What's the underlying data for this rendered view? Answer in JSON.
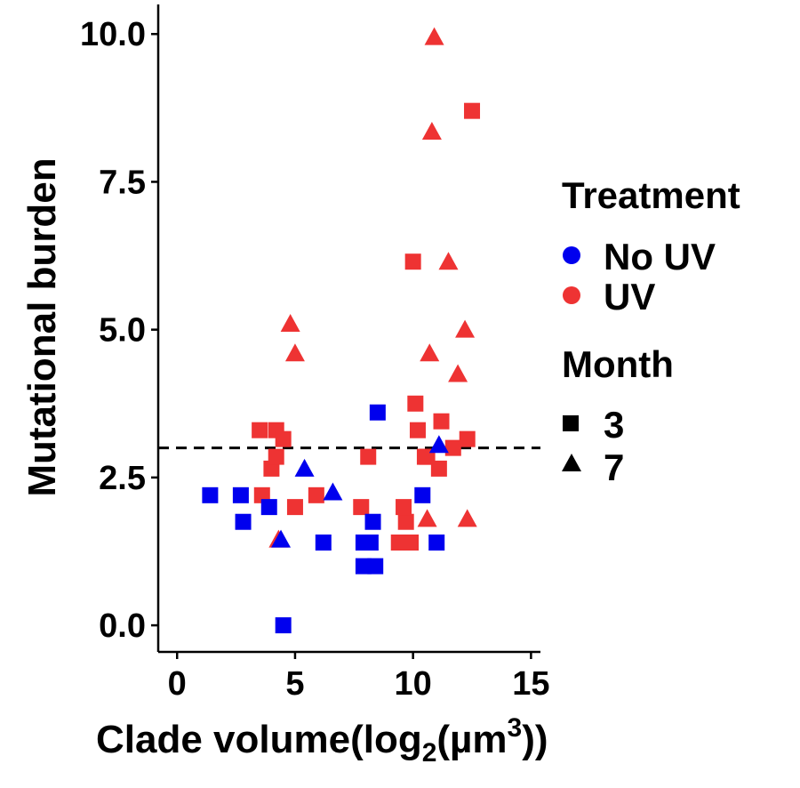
{
  "chart_data": {
    "type": "scatter",
    "xlabel": "Clade volume",
    "xlabel_parts": {
      "prefix": "Clade volume(log",
      "sub": "2",
      "mid": "(µm",
      "sup": "3",
      "suffix": "))"
    },
    "ylabel": "Mutational burden",
    "xlim": [
      -0.8,
      15.4
    ],
    "ylim": [
      -0.45,
      10.5
    ],
    "x_ticks": [
      0,
      5,
      10,
      15
    ],
    "x_tick_labels": [
      "0",
      "5",
      "10",
      "15"
    ],
    "y_ticks": [
      0,
      2.5,
      5,
      7.5,
      10
    ],
    "y_tick_labels": [
      "0.0",
      "2.5",
      "5.0",
      "7.5",
      "10.0"
    ],
    "reference_line": {
      "y": 3.0,
      "style": "dashed"
    },
    "grid": false,
    "legend_position": "right",
    "legend": {
      "treatment_title": "Treatment",
      "treatment_items": [
        {
          "label": "No UV",
          "color": "#0000ee"
        },
        {
          "label": "UV",
          "color": "#ee3333"
        }
      ],
      "month_title": "Month",
      "month_items": [
        {
          "label": "3",
          "shape": "square"
        },
        {
          "label": "7",
          "shape": "triangle"
        }
      ]
    },
    "colors": {
      "No UV": "#0000ee",
      "UV": "#ee3333"
    },
    "series": [
      {
        "treatment": "No UV",
        "month": "3",
        "x": [
          1.4,
          2.7,
          2.8,
          3.9,
          4.5,
          6.2,
          7.9,
          8.2,
          8.3,
          7.9,
          8.4,
          10.4,
          11.0,
          8.5
        ],
        "y": [
          2.2,
          2.2,
          1.75,
          2.0,
          0.0,
          1.4,
          1.4,
          1.4,
          1.75,
          1.0,
          1.0,
          2.2,
          1.4,
          3.6
        ]
      },
      {
        "treatment": "No UV",
        "month": "7",
        "x": [
          4.4,
          5.4,
          6.6,
          11.1
        ],
        "y": [
          1.45,
          2.65,
          2.25,
          3.05
        ]
      },
      {
        "treatment": "UV",
        "month": "3",
        "x": [
          3.5,
          4.2,
          4.5,
          4.0,
          4.2,
          3.6,
          5.0,
          5.9,
          7.8,
          8.1,
          9.4,
          9.9,
          10.0,
          10.1,
          10.2,
          10.5,
          10.6,
          11.1,
          11.2,
          11.7,
          12.3,
          12.5,
          9.7,
          9.6
        ],
        "y": [
          3.3,
          3.3,
          3.15,
          2.65,
          2.85,
          2.2,
          2.0,
          2.2,
          2.0,
          2.85,
          1.4,
          1.4,
          6.15,
          3.75,
          3.3,
          2.85,
          2.85,
          2.65,
          3.45,
          3.0,
          3.15,
          8.7,
          1.75,
          2.0
        ]
      },
      {
        "treatment": "UV",
        "month": "7",
        "x": [
          4.3,
          4.8,
          5.0,
          10.6,
          10.8,
          10.9,
          11.5,
          11.9,
          12.2,
          12.3,
          10.7
        ],
        "y": [
          1.45,
          5.1,
          4.6,
          1.8,
          8.35,
          9.95,
          6.15,
          4.25,
          5.0,
          1.8,
          4.6
        ]
      }
    ]
  }
}
